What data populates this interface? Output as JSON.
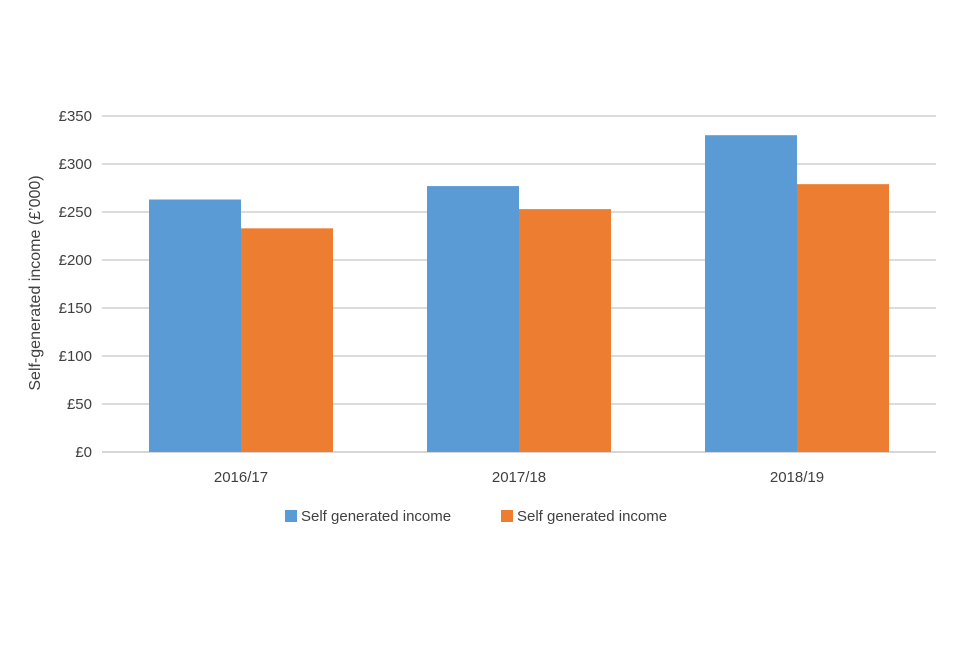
{
  "chart_data": {
    "type": "bar",
    "title": "",
    "xlabel": "",
    "ylabel": "Self-generated income (£’000)",
    "categories": [
      "2016/17",
      "2017/18",
      "2018/19"
    ],
    "series": [
      {
        "name": "Self generated income",
        "color": "#5b9bd5",
        "values": [
          263,
          277,
          330
        ]
      },
      {
        "name": "Self generated income",
        "color": "#ed7d31",
        "values": [
          233,
          253,
          279
        ]
      }
    ],
    "ylim": [
      0,
      350
    ],
    "yticks": [
      0,
      50,
      100,
      150,
      200,
      250,
      300,
      350
    ],
    "ytick_labels": [
      "£0",
      "£50",
      "£100",
      "£150",
      "£200",
      "£250",
      "£300",
      "£350"
    ],
    "grid": true,
    "legend_position": "bottom-center"
  }
}
